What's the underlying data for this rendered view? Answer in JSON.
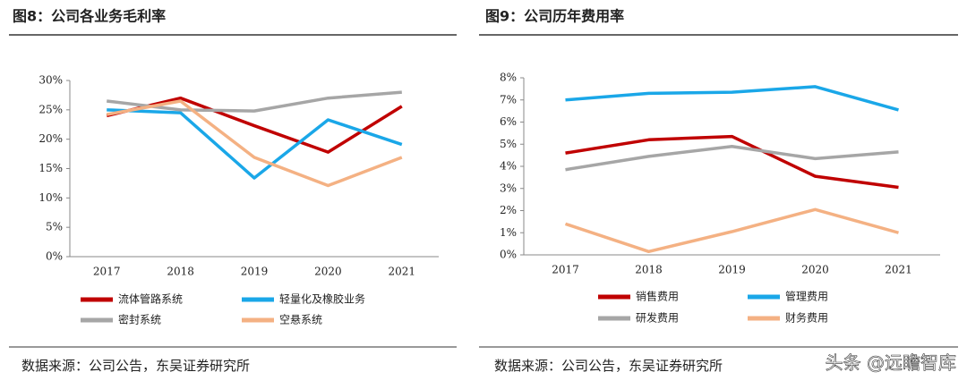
{
  "chart_data": [
    {
      "type": "line",
      "title": "图8：公司各业务毛利率",
      "categories": [
        "2017",
        "2018",
        "2019",
        "2020",
        "2021"
      ],
      "series": [
        {
          "name": "流体管路系统",
          "color": "#c00000",
          "values": [
            24,
            27,
            22.3,
            17.8,
            25.6
          ]
        },
        {
          "name": "轻量化及橡胶业务",
          "color": "#1aa7e8",
          "values": [
            25,
            24.5,
            13.4,
            23.3,
            19.1
          ]
        },
        {
          "name": "密封系统",
          "color": "#a6a6a6",
          "values": [
            26.5,
            25,
            24.8,
            27,
            28
          ]
        },
        {
          "name": "空悬系统",
          "color": "#f4b183",
          "values": [
            24.2,
            26.5,
            16.9,
            12.1,
            16.9
          ]
        }
      ],
      "ylim": [
        0,
        30
      ],
      "yticks": [
        {
          "value": 0,
          "label": "0%"
        },
        {
          "value": 5,
          "label": "5%"
        },
        {
          "value": 10,
          "label": "10%"
        },
        {
          "value": 15,
          "label": "15%"
        },
        {
          "value": 20,
          "label": "20%"
        },
        {
          "value": 25,
          "label": "25%"
        },
        {
          "value": 30,
          "label": "30%"
        }
      ],
      "source": "数据来源：公司公告，东吴证券研究所"
    },
    {
      "type": "line",
      "title": "图9：公司历年费用率",
      "categories": [
        "2017",
        "2018",
        "2019",
        "2020",
        "2021"
      ],
      "series": [
        {
          "name": "销售费用",
          "color": "#c00000",
          "values": [
            4.6,
            5.2,
            5.35,
            3.55,
            3.05
          ]
        },
        {
          "name": "管理费用",
          "color": "#1aa7e8",
          "values": [
            7.0,
            7.3,
            7.35,
            7.6,
            6.55
          ]
        },
        {
          "name": "研发费用",
          "color": "#a6a6a6",
          "values": [
            3.85,
            4.45,
            4.9,
            4.35,
            4.65
          ]
        },
        {
          "name": "财务费用",
          "color": "#f4b183",
          "values": [
            1.4,
            0.15,
            1.05,
            2.05,
            1.0
          ]
        }
      ],
      "ylim": [
        0,
        8
      ],
      "yticks": [
        {
          "value": 0,
          "label": "0%"
        },
        {
          "value": 1,
          "label": "1%"
        },
        {
          "value": 2,
          "label": "2%"
        },
        {
          "value": 3,
          "label": "3%"
        },
        {
          "value": 4,
          "label": "4%"
        },
        {
          "value": 5,
          "label": "5%"
        },
        {
          "value": 6,
          "label": "6%"
        },
        {
          "value": 7,
          "label": "7%"
        },
        {
          "value": 8,
          "label": "8%"
        }
      ],
      "source": "数据来源：公司公告，东吴证券研究所"
    }
  ],
  "watermark": "头条 @远瞻智库"
}
